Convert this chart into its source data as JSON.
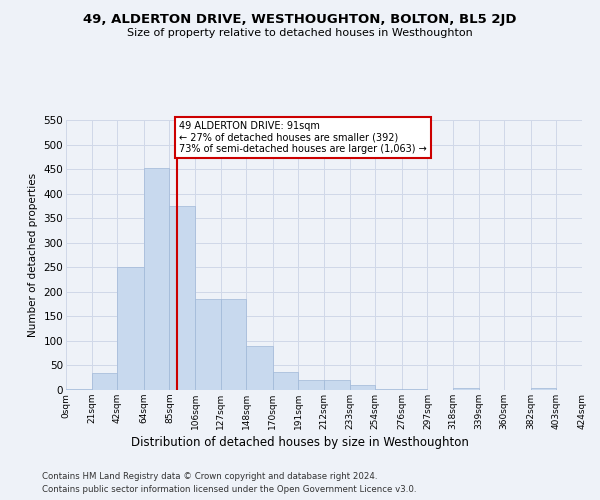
{
  "title": "49, ALDERTON DRIVE, WESTHOUGHTON, BOLTON, BL5 2JD",
  "subtitle": "Size of property relative to detached houses in Westhoughton",
  "xlabel": "Distribution of detached houses by size in Westhoughton",
  "ylabel": "Number of detached properties",
  "footer_line1": "Contains HM Land Registry data © Crown copyright and database right 2024.",
  "footer_line2": "Contains public sector information licensed under the Open Government Licence v3.0.",
  "bar_edges": [
    0,
    21,
    42,
    64,
    85,
    106,
    127,
    148,
    170,
    191,
    212,
    233,
    254,
    276,
    297,
    318,
    339,
    360,
    382,
    403,
    424
  ],
  "bar_heights": [
    3,
    35,
    250,
    452,
    375,
    185,
    185,
    90,
    37,
    20,
    20,
    10,
    3,
    3,
    0,
    5,
    0,
    0,
    5,
    0,
    3
  ],
  "bar_color": "#c8d9ee",
  "bar_edge_color": "#a0b8d8",
  "grid_color": "#d0d8e8",
  "vline_x": 91,
  "vline_color": "#cc0000",
  "annotation_text": "49 ALDERTON DRIVE: 91sqm\n← 27% of detached houses are smaller (392)\n73% of semi-detached houses are larger (1,063) →",
  "annotation_box_edge": "#cc0000",
  "ylim": [
    0,
    550
  ],
  "tick_labels": [
    "0sqm",
    "21sqm",
    "42sqm",
    "64sqm",
    "85sqm",
    "106sqm",
    "127sqm",
    "148sqm",
    "170sqm",
    "191sqm",
    "212sqm",
    "233sqm",
    "254sqm",
    "276sqm",
    "297sqm",
    "318sqm",
    "339sqm",
    "360sqm",
    "382sqm",
    "403sqm",
    "424sqm"
  ],
  "yticks": [
    0,
    50,
    100,
    150,
    200,
    250,
    300,
    350,
    400,
    450,
    500,
    550
  ],
  "background_color": "#eef2f8"
}
